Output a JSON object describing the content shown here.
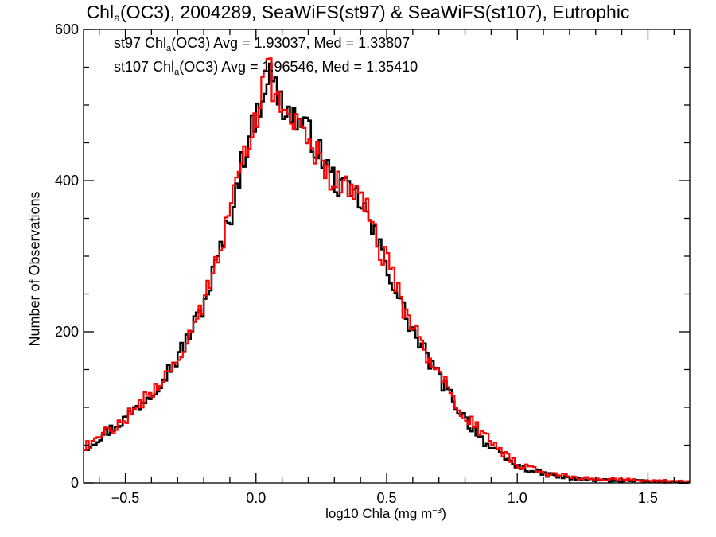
{
  "chart_data": {
    "type": "histogram",
    "title": {
      "prefix": "Chl",
      "sub": "a",
      "rest": "(OC3), 2004289, SeaWiFS(st97) & SeaWiFS(st107), Eutrophic"
    },
    "xlabel": {
      "text": "log10 Chla (mg m",
      "sup": "−3",
      "close": ")"
    },
    "ylabel": "Number of Observations",
    "xlim": [
      -0.66,
      1.66
    ],
    "ylim": [
      0,
      600
    ],
    "x_ticks": [
      -0.5,
      0.0,
      0.5,
      1.0,
      1.5
    ],
    "x_tick_labels": [
      "−0.5",
      "0.0",
      "0.5",
      "1.0",
      "1.5"
    ],
    "y_ticks": [
      0,
      200,
      400,
      600
    ],
    "y_tick_labels": [
      "0",
      "200",
      "400",
      "600"
    ],
    "bin_width": 0.01,
    "series": [
      {
        "color": "#000000",
        "legend": {
          "prefix": "st97 Chl",
          "sub": "a",
          "rest": "(OC3) Avg = 1.93037, Med = 1.33807"
        },
        "knots": [
          [
            -0.66,
            45
          ],
          [
            -0.6,
            60
          ],
          [
            -0.5,
            85
          ],
          [
            -0.4,
            120
          ],
          [
            -0.3,
            165
          ],
          [
            -0.2,
            235
          ],
          [
            -0.1,
            350
          ],
          [
            -0.05,
            430
          ],
          [
            0.0,
            485
          ],
          [
            0.05,
            545
          ],
          [
            0.1,
            500
          ],
          [
            0.2,
            465
          ],
          [
            0.3,
            400
          ],
          [
            0.35,
            385
          ],
          [
            0.4,
            375
          ],
          [
            0.45,
            330
          ],
          [
            0.5,
            290
          ],
          [
            0.55,
            240
          ],
          [
            0.6,
            200
          ],
          [
            0.7,
            140
          ],
          [
            0.8,
            85
          ],
          [
            0.9,
            45
          ],
          [
            1.0,
            22
          ],
          [
            1.1,
            12
          ],
          [
            1.2,
            6
          ],
          [
            1.3,
            4
          ],
          [
            1.4,
            3
          ],
          [
            1.5,
            2
          ],
          [
            1.66,
            1
          ]
        ],
        "amp": 9,
        "seed": 97
      },
      {
        "color": "#ff0000",
        "legend": {
          "prefix": "st107 Chl",
          "sub": "a",
          "rest": "(OC3) Avg = 1.96546, Med = 1.35410"
        },
        "knots": [
          [
            -0.66,
            45
          ],
          [
            -0.6,
            60
          ],
          [
            -0.5,
            85
          ],
          [
            -0.4,
            120
          ],
          [
            -0.3,
            165
          ],
          [
            -0.2,
            240
          ],
          [
            -0.1,
            355
          ],
          [
            -0.05,
            435
          ],
          [
            0.0,
            485
          ],
          [
            0.05,
            545
          ],
          [
            0.1,
            485
          ],
          [
            0.2,
            455
          ],
          [
            0.3,
            395
          ],
          [
            0.35,
            395
          ],
          [
            0.4,
            390
          ],
          [
            0.45,
            330
          ],
          [
            0.5,
            295
          ],
          [
            0.55,
            245
          ],
          [
            0.6,
            205
          ],
          [
            0.7,
            145
          ],
          [
            0.8,
            90
          ],
          [
            0.9,
            52
          ],
          [
            1.0,
            25
          ],
          [
            1.1,
            14
          ],
          [
            1.2,
            8
          ],
          [
            1.3,
            5
          ],
          [
            1.4,
            4
          ],
          [
            1.5,
            3
          ],
          [
            1.66,
            2
          ]
        ],
        "amp": 10,
        "seed": 107
      }
    ],
    "legend_position": "top-left"
  }
}
